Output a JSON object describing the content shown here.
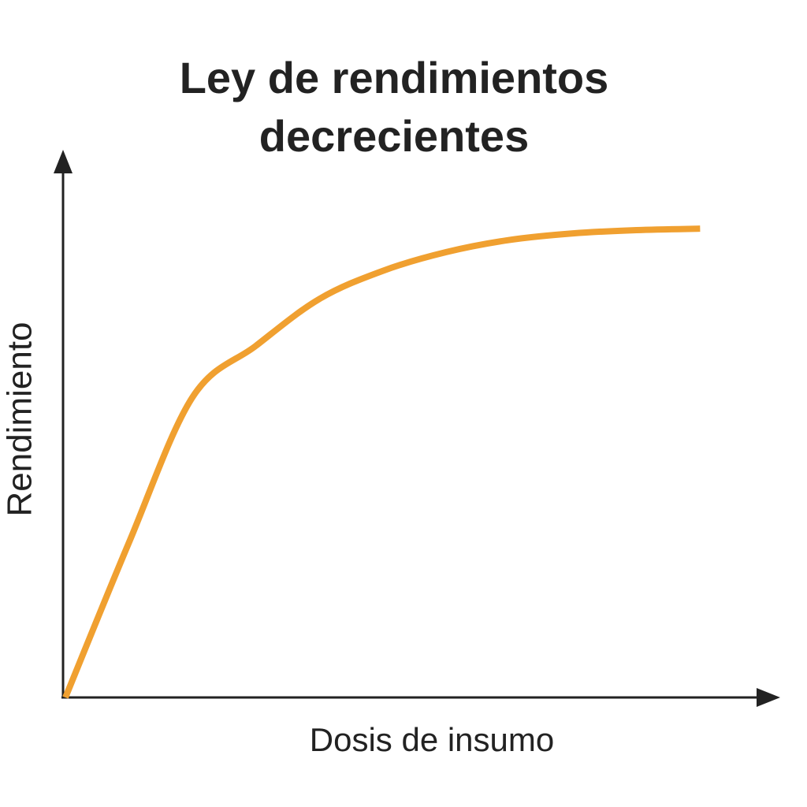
{
  "chart_data": {
    "type": "line",
    "title": "Ley de rendimientos decrecientes",
    "x_label": "Dosis de insumo",
    "y_label": "Rendimiento",
    "x": [
      0,
      1,
      2,
      3,
      4,
      5,
      6,
      7,
      8,
      9,
      10
    ],
    "series": [
      {
        "color": "#f0a030",
        "values": [
          0,
          33,
          64,
          75,
          85,
          91,
          95,
          97.6,
          99,
          99.7,
          100
        ]
      }
    ],
    "xlim": [
      0,
      11.2
    ],
    "ylim": [
      0,
      116
    ]
  }
}
